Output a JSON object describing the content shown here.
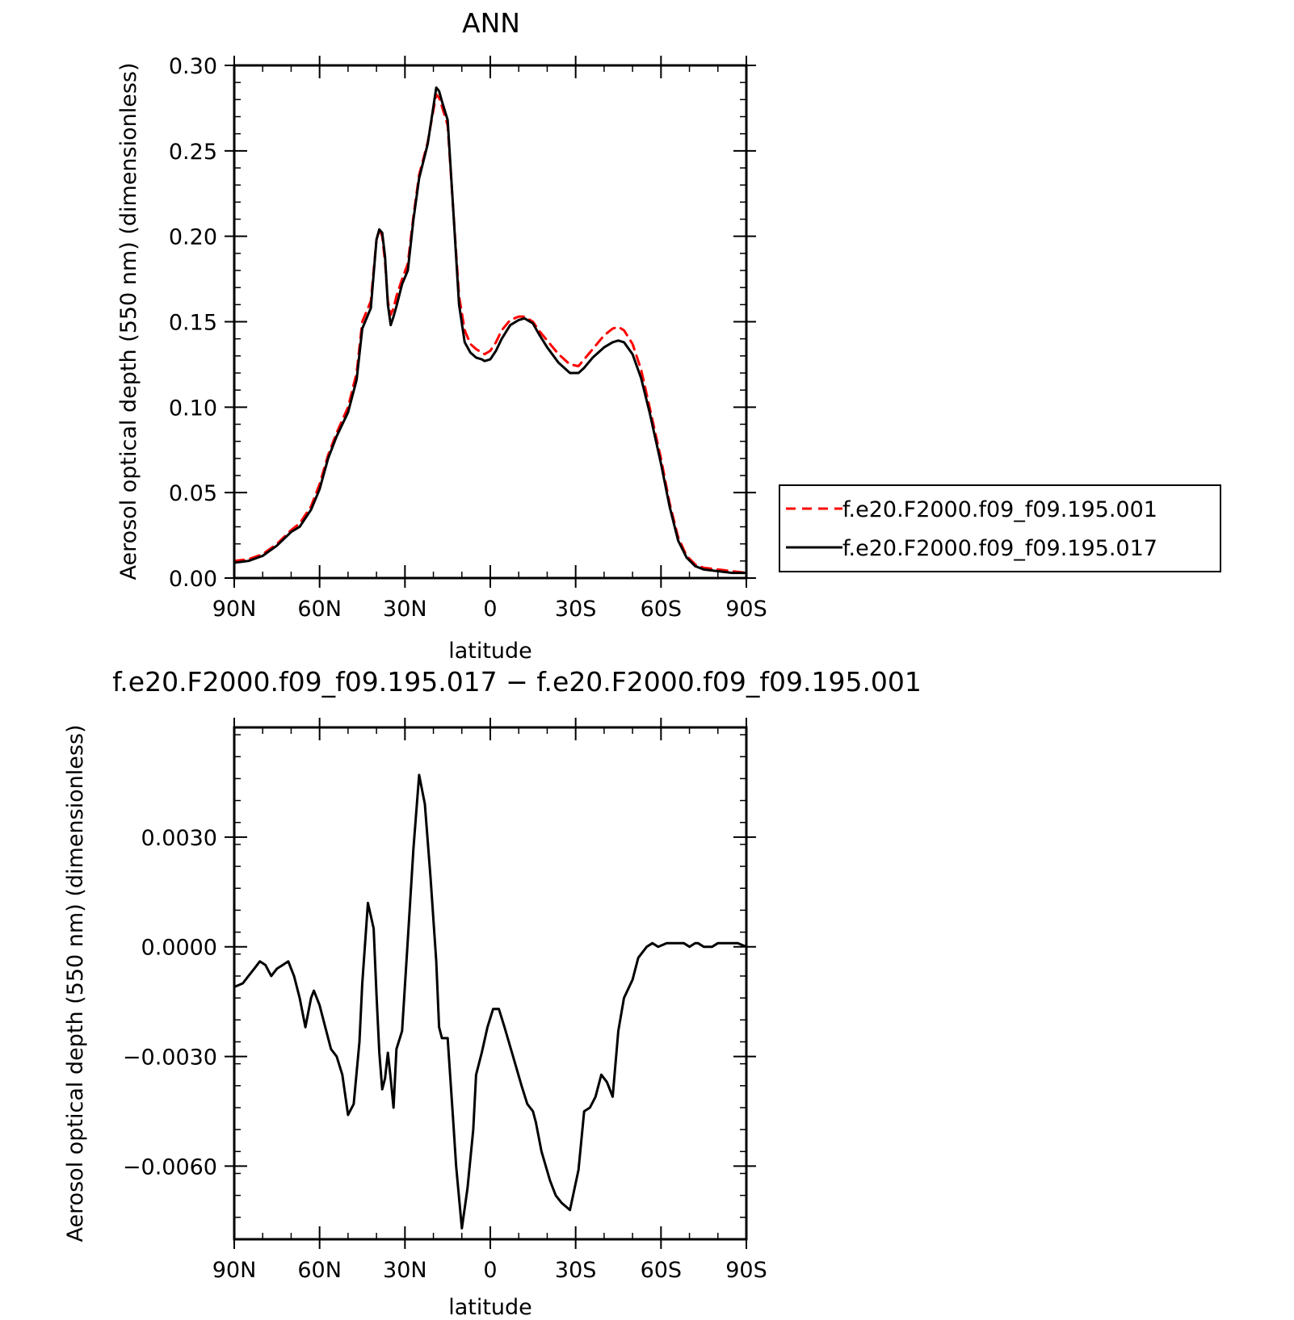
{
  "chart_data": [
    {
      "type": "line",
      "title": "ANN",
      "xlabel": "latitude",
      "ylabel": "Aerosol optical depth (550 nm) (dimensionless)",
      "x_ticks": [
        90,
        60,
        30,
        0,
        -30,
        -60,
        -90
      ],
      "x_tick_labels": [
        "90N",
        "60N",
        "30N",
        "0",
        "30S",
        "60S",
        "90S"
      ],
      "xlim": [
        90,
        -90
      ],
      "ylim": [
        0,
        0.3
      ],
      "y_ticks": [
        0,
        0.05,
        0.1,
        0.15,
        0.2,
        0.25,
        0.3
      ],
      "y_tick_labels": [
        "0.00",
        "0.05",
        "0.10",
        "0.15",
        "0.20",
        "0.25",
        "0.30"
      ],
      "grid": false,
      "legend_position": "outside-right",
      "series": [
        {
          "name": "f.e20.F2000.f09_f09.195.001",
          "color": "#ff0000",
          "dash": "dashed",
          "x": [
            90,
            85,
            80,
            75,
            70,
            67,
            63,
            60,
            57,
            54,
            50,
            47,
            45,
            44,
            42,
            40,
            39,
            38,
            37,
            36,
            35,
            34,
            33,
            31,
            29,
            27,
            25,
            22,
            20,
            19,
            18,
            17,
            15,
            13,
            11,
            9,
            7,
            5,
            3,
            2,
            0,
            -2,
            -4,
            -7,
            -10,
            -12,
            -15,
            -17,
            -20,
            -24,
            -28,
            -31,
            -33,
            -36,
            -40,
            -43,
            -45,
            -47,
            -50,
            -53,
            -56,
            -60,
            -63,
            -66,
            -69,
            -72,
            -75,
            -80,
            -85,
            -90
          ],
          "values": [
            0.01,
            0.011,
            0.014,
            0.02,
            0.028,
            0.032,
            0.042,
            0.055,
            0.072,
            0.085,
            0.1,
            0.12,
            0.15,
            0.154,
            0.162,
            0.198,
            0.204,
            0.2,
            0.185,
            0.162,
            0.154,
            0.158,
            0.165,
            0.175,
            0.184,
            0.212,
            0.236,
            0.255,
            0.274,
            0.283,
            0.281,
            0.276,
            0.265,
            0.215,
            0.165,
            0.145,
            0.137,
            0.134,
            0.132,
            0.131,
            0.133,
            0.138,
            0.145,
            0.151,
            0.153,
            0.153,
            0.15,
            0.145,
            0.139,
            0.131,
            0.125,
            0.124,
            0.128,
            0.134,
            0.142,
            0.146,
            0.147,
            0.145,
            0.137,
            0.122,
            0.1,
            0.07,
            0.044,
            0.024,
            0.013,
            0.008,
            0.006,
            0.005,
            0.004,
            0.003
          ]
        },
        {
          "name": "f.e20.F2000.f09_f09.195.017",
          "color": "#000000",
          "dash": "solid",
          "x": [
            90,
            85,
            80,
            75,
            70,
            67,
            63,
            60,
            57,
            54,
            50,
            47,
            45,
            44,
            42,
            40,
            39,
            38,
            37,
            36,
            35,
            34,
            33,
            31,
            29,
            27,
            25,
            22,
            20,
            19,
            18,
            17,
            15,
            13,
            11,
            9,
            7,
            5,
            3,
            2,
            0,
            -2,
            -4,
            -7,
            -10,
            -12,
            -15,
            -17,
            -20,
            -24,
            -28,
            -31,
            -33,
            -36,
            -40,
            -43,
            -45,
            -47,
            -50,
            -53,
            -56,
            -60,
            -63,
            -66,
            -69,
            -72,
            -75,
            -80,
            -85,
            -90
          ],
          "values": [
            0.009,
            0.01,
            0.013,
            0.019,
            0.027,
            0.03,
            0.04,
            0.052,
            0.07,
            0.083,
            0.097,
            0.116,
            0.146,
            0.15,
            0.158,
            0.198,
            0.204,
            0.202,
            0.188,
            0.16,
            0.148,
            0.153,
            0.159,
            0.172,
            0.18,
            0.21,
            0.234,
            0.254,
            0.276,
            0.287,
            0.285,
            0.279,
            0.268,
            0.215,
            0.16,
            0.138,
            0.132,
            0.129,
            0.128,
            0.127,
            0.128,
            0.133,
            0.14,
            0.148,
            0.151,
            0.152,
            0.149,
            0.143,
            0.135,
            0.126,
            0.12,
            0.12,
            0.123,
            0.129,
            0.135,
            0.138,
            0.139,
            0.138,
            0.131,
            0.117,
            0.097,
            0.067,
            0.042,
            0.022,
            0.012,
            0.007,
            0.005,
            0.004,
            0.003,
            0.003
          ]
        }
      ]
    },
    {
      "type": "line",
      "title": "f.e20.F2000.f09_f09.195.017 − f.e20.F2000.f09_f09.195.001",
      "xlabel": "latitude",
      "ylabel": "Aerosol optical depth (550 nm) (dimensionless)",
      "x_ticks": [
        90,
        60,
        30,
        0,
        -30,
        -60,
        -90
      ],
      "x_tick_labels": [
        "90N",
        "60N",
        "30N",
        "0",
        "30S",
        "60S",
        "90S"
      ],
      "xlim": [
        90,
        -90
      ],
      "ylim": [
        -0.008,
        0.006
      ],
      "y_ticks": [
        -0.006,
        -0.003,
        0,
        0.003
      ],
      "y_tick_labels": [
        "−0.0060",
        "−0.0030",
        "0.0000",
        "0.0030"
      ],
      "grid": false,
      "series": [
        {
          "color": "#000000",
          "dash": "solid",
          "x": [
            90,
            87,
            85,
            83,
            81,
            79,
            77,
            75,
            73,
            71,
            69,
            67,
            65,
            63,
            62,
            60,
            58,
            56,
            54,
            52,
            50,
            48,
            46,
            45,
            43,
            41,
            40,
            39,
            38,
            37,
            36,
            35,
            34,
            33,
            31,
            29,
            27,
            25,
            23,
            21,
            19,
            18,
            17,
            15,
            13,
            12,
            10,
            8,
            6,
            5,
            3,
            1,
            -1,
            -3,
            -5,
            -8,
            -11,
            -13,
            -15,
            -16,
            -18,
            -21,
            -23,
            -25,
            -28,
            -31,
            -33,
            -35,
            -37,
            -39,
            -41,
            -43,
            -45,
            -47,
            -50,
            -52,
            -55,
            -57,
            -59,
            -62,
            -65,
            -67,
            -68,
            -70,
            -72,
            -73,
            -75,
            -78,
            -80,
            -82,
            -85,
            -87,
            -90
          ],
          "values": [
            -0.0011,
            -0.001,
            -0.0008,
            -0.0006,
            -0.0004,
            -0.0005,
            -0.0008,
            -0.0006,
            -0.0005,
            -0.0004,
            -0.0008,
            -0.0014,
            -0.0022,
            -0.0014,
            -0.0012,
            -0.0016,
            -0.0022,
            -0.0028,
            -0.003,
            -0.0035,
            -0.0046,
            -0.0043,
            -0.0026,
            -0.001,
            0.0012,
            0.0005,
            -0.0013,
            -0.0029,
            -0.0039,
            -0.0036,
            -0.0029,
            -0.0036,
            -0.0044,
            -0.0028,
            -0.0023,
            0.0002,
            0.0027,
            0.0047,
            0.0039,
            0.0019,
            -0.0004,
            -0.0022,
            -0.0025,
            -0.0025,
            -0.0048,
            -0.006,
            -0.0077,
            -0.0066,
            -0.005,
            -0.0035,
            -0.0029,
            -0.0022,
            -0.0017,
            -0.0017,
            -0.0022,
            -0.003,
            -0.0038,
            -0.0043,
            -0.0045,
            -0.0048,
            -0.0056,
            -0.0064,
            -0.0068,
            -0.007,
            -0.0072,
            -0.0061,
            -0.0045,
            -0.0044,
            -0.0041,
            -0.0035,
            -0.0037,
            -0.0041,
            -0.0023,
            -0.0014,
            -0.0009,
            -0.0003,
            0.0,
            0.0001,
            0.0,
            0.0001,
            0.0001,
            0.0001,
            0.0001,
            0.0,
            0.0001,
            0.0001,
            0.0,
            0.0,
            0.0001,
            0.0001,
            0.0001,
            0.0001,
            0.0
          ]
        }
      ]
    }
  ]
}
